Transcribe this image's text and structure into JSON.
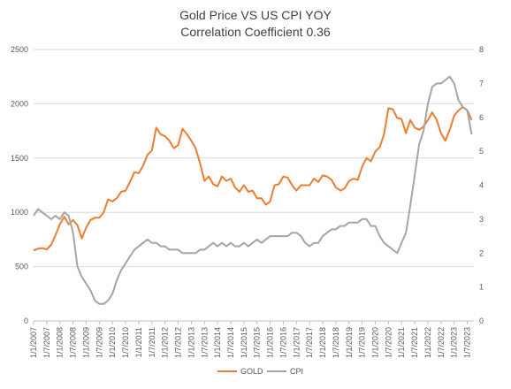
{
  "chart_data": {
    "type": "line",
    "title": "Gold Price VS US CPI YOY",
    "subtitle": "Correlation Coefficient 0.36",
    "x_labels": [
      "1/1/2007",
      "1/7/2007",
      "1/1/2008",
      "1/7/2008",
      "1/1/2009",
      "1/7/2009",
      "1/1/2010",
      "1/7/2010",
      "1/1/2011",
      "1/7/2011",
      "1/1/2012",
      "1/7/2012",
      "1/1/2013",
      "1/7/2013",
      "1/1/2014",
      "1/7/2014",
      "1/1/2015",
      "1/7/2015",
      "1/1/2016",
      "1/7/2016",
      "1/1/2017",
      "1/7/2017",
      "1/1/2018",
      "1/7/2018",
      "1/1/2019",
      "1/7/2019",
      "1/1/2020",
      "1/7/2020",
      "1/1/2021",
      "1/7/2021",
      "1/1/2022",
      "1/7/2022",
      "1/1/2023",
      "1/7/2023"
    ],
    "y_left": {
      "min": 0,
      "max": 2500,
      "ticks": [
        "0",
        "500",
        "1000",
        "1500",
        "2000",
        "2500"
      ]
    },
    "y_right": {
      "min": 0,
      "max": 8,
      "ticks": [
        "0",
        "1",
        "2",
        "3",
        "4",
        "5",
        "6",
        "7",
        "8"
      ]
    },
    "grid": true,
    "legend_position": "bottom",
    "series": [
      {
        "name": "GOLD",
        "axis": "left",
        "color": "#ED7D31",
        "x": [
          "2007-01",
          "2007-03",
          "2007-05",
          "2007-07",
          "2007-09",
          "2007-11",
          "2008-01",
          "2008-03",
          "2008-05",
          "2008-07",
          "2008-09",
          "2008-11",
          "2009-01",
          "2009-03",
          "2009-05",
          "2009-07",
          "2009-09",
          "2009-11",
          "2010-01",
          "2010-03",
          "2010-05",
          "2010-07",
          "2010-09",
          "2010-11",
          "2011-01",
          "2011-03",
          "2011-05",
          "2011-07",
          "2011-09",
          "2011-11",
          "2012-01",
          "2012-03",
          "2012-05",
          "2012-07",
          "2012-09",
          "2012-11",
          "2013-01",
          "2013-03",
          "2013-05",
          "2013-07",
          "2013-09",
          "2013-11",
          "2014-01",
          "2014-03",
          "2014-05",
          "2014-07",
          "2014-09",
          "2014-11",
          "2015-01",
          "2015-03",
          "2015-05",
          "2015-07",
          "2015-09",
          "2015-11",
          "2016-01",
          "2016-03",
          "2016-05",
          "2016-07",
          "2016-09",
          "2016-11",
          "2017-01",
          "2017-03",
          "2017-05",
          "2017-07",
          "2017-09",
          "2017-11",
          "2018-01",
          "2018-03",
          "2018-05",
          "2018-07",
          "2018-09",
          "2018-11",
          "2019-01",
          "2019-03",
          "2019-05",
          "2019-07",
          "2019-09",
          "2019-11",
          "2020-01",
          "2020-03",
          "2020-05",
          "2020-07",
          "2020-09",
          "2020-11",
          "2021-01",
          "2021-03",
          "2021-05",
          "2021-07",
          "2021-09",
          "2021-11",
          "2022-01",
          "2022-03",
          "2022-05",
          "2022-07",
          "2022-09",
          "2022-11",
          "2023-01",
          "2023-03",
          "2023-05",
          "2023-07",
          "2023-09"
        ],
        "values": [
          650,
          665,
          670,
          660,
          700,
          790,
          890,
          960,
          890,
          930,
          880,
          760,
          860,
          930,
          950,
          950,
          1000,
          1120,
          1100,
          1130,
          1190,
          1200,
          1280,
          1370,
          1360,
          1430,
          1530,
          1570,
          1780,
          1720,
          1700,
          1660,
          1590,
          1620,
          1770,
          1720,
          1660,
          1590,
          1450,
          1290,
          1330,
          1260,
          1240,
          1330,
          1290,
          1310,
          1230,
          1190,
          1250,
          1190,
          1200,
          1130,
          1130,
          1070,
          1100,
          1250,
          1260,
          1330,
          1320,
          1250,
          1200,
          1250,
          1250,
          1250,
          1310,
          1280,
          1340,
          1330,
          1300,
          1230,
          1200,
          1220,
          1290,
          1310,
          1300,
          1420,
          1500,
          1470,
          1560,
          1600,
          1720,
          1960,
          1950,
          1870,
          1860,
          1730,
          1850,
          1780,
          1760,
          1790,
          1850,
          1920,
          1850,
          1730,
          1660,
          1760,
          1890,
          1940,
          1970,
          1940,
          1850
        ]
      },
      {
        "name": "CPI",
        "axis": "right",
        "color": "#A5A5A5",
        "x": [
          "2007-01",
          "2007-03",
          "2007-05",
          "2007-07",
          "2007-09",
          "2007-11",
          "2008-01",
          "2008-03",
          "2008-05",
          "2008-07",
          "2008-09",
          "2008-11",
          "2009-01",
          "2009-03",
          "2009-05",
          "2009-07",
          "2009-09",
          "2009-11",
          "2010-01",
          "2010-03",
          "2010-05",
          "2010-07",
          "2010-09",
          "2010-11",
          "2011-01",
          "2011-03",
          "2011-05",
          "2011-07",
          "2011-09",
          "2011-11",
          "2012-01",
          "2012-03",
          "2012-05",
          "2012-07",
          "2012-09",
          "2012-11",
          "2013-01",
          "2013-03",
          "2013-05",
          "2013-07",
          "2013-09",
          "2013-11",
          "2014-01",
          "2014-03",
          "2014-05",
          "2014-07",
          "2014-09",
          "2014-11",
          "2015-01",
          "2015-03",
          "2015-05",
          "2015-07",
          "2015-09",
          "2015-11",
          "2016-01",
          "2016-03",
          "2016-05",
          "2016-07",
          "2016-09",
          "2016-11",
          "2017-01",
          "2017-03",
          "2017-05",
          "2017-07",
          "2017-09",
          "2017-11",
          "2018-01",
          "2018-03",
          "2018-05",
          "2018-07",
          "2018-09",
          "2018-11",
          "2019-01",
          "2019-03",
          "2019-05",
          "2019-07",
          "2019-09",
          "2019-11",
          "2020-01",
          "2020-03",
          "2020-05",
          "2020-07",
          "2020-09",
          "2020-11",
          "2021-01",
          "2021-03",
          "2021-05",
          "2021-07",
          "2021-09",
          "2021-11",
          "2022-01",
          "2022-03",
          "2022-05",
          "2022-07",
          "2022-09",
          "2022-11",
          "2023-01",
          "2023-03",
          "2023-05",
          "2023-07",
          "2023-09"
        ],
        "values": [
          3.1,
          3.3,
          3.2,
          3.1,
          3.0,
          3.1,
          3.0,
          3.2,
          3.1,
          2.6,
          1.6,
          1.3,
          1.1,
          0.9,
          0.6,
          0.5,
          0.5,
          0.6,
          0.8,
          1.2,
          1.5,
          1.7,
          1.9,
          2.1,
          2.2,
          2.3,
          2.4,
          2.3,
          2.3,
          2.2,
          2.2,
          2.1,
          2.1,
          2.1,
          2.0,
          2.0,
          2.0,
          2.0,
          2.1,
          2.1,
          2.2,
          2.3,
          2.2,
          2.3,
          2.2,
          2.3,
          2.2,
          2.2,
          2.3,
          2.2,
          2.3,
          2.4,
          2.3,
          2.4,
          2.5,
          2.5,
          2.5,
          2.5,
          2.5,
          2.6,
          2.6,
          2.5,
          2.3,
          2.2,
          2.3,
          2.3,
          2.5,
          2.6,
          2.7,
          2.7,
          2.8,
          2.8,
          2.9,
          2.9,
          2.9,
          3.0,
          3.0,
          2.8,
          2.8,
          2.5,
          2.3,
          2.2,
          2.1,
          2.0,
          2.3,
          2.6,
          3.4,
          4.3,
          5.2,
          5.6,
          6.4,
          6.9,
          7.0,
          7.0,
          7.1,
          7.2,
          7.0,
          6.5,
          6.3,
          6.2,
          5.5
        ]
      }
    ]
  }
}
